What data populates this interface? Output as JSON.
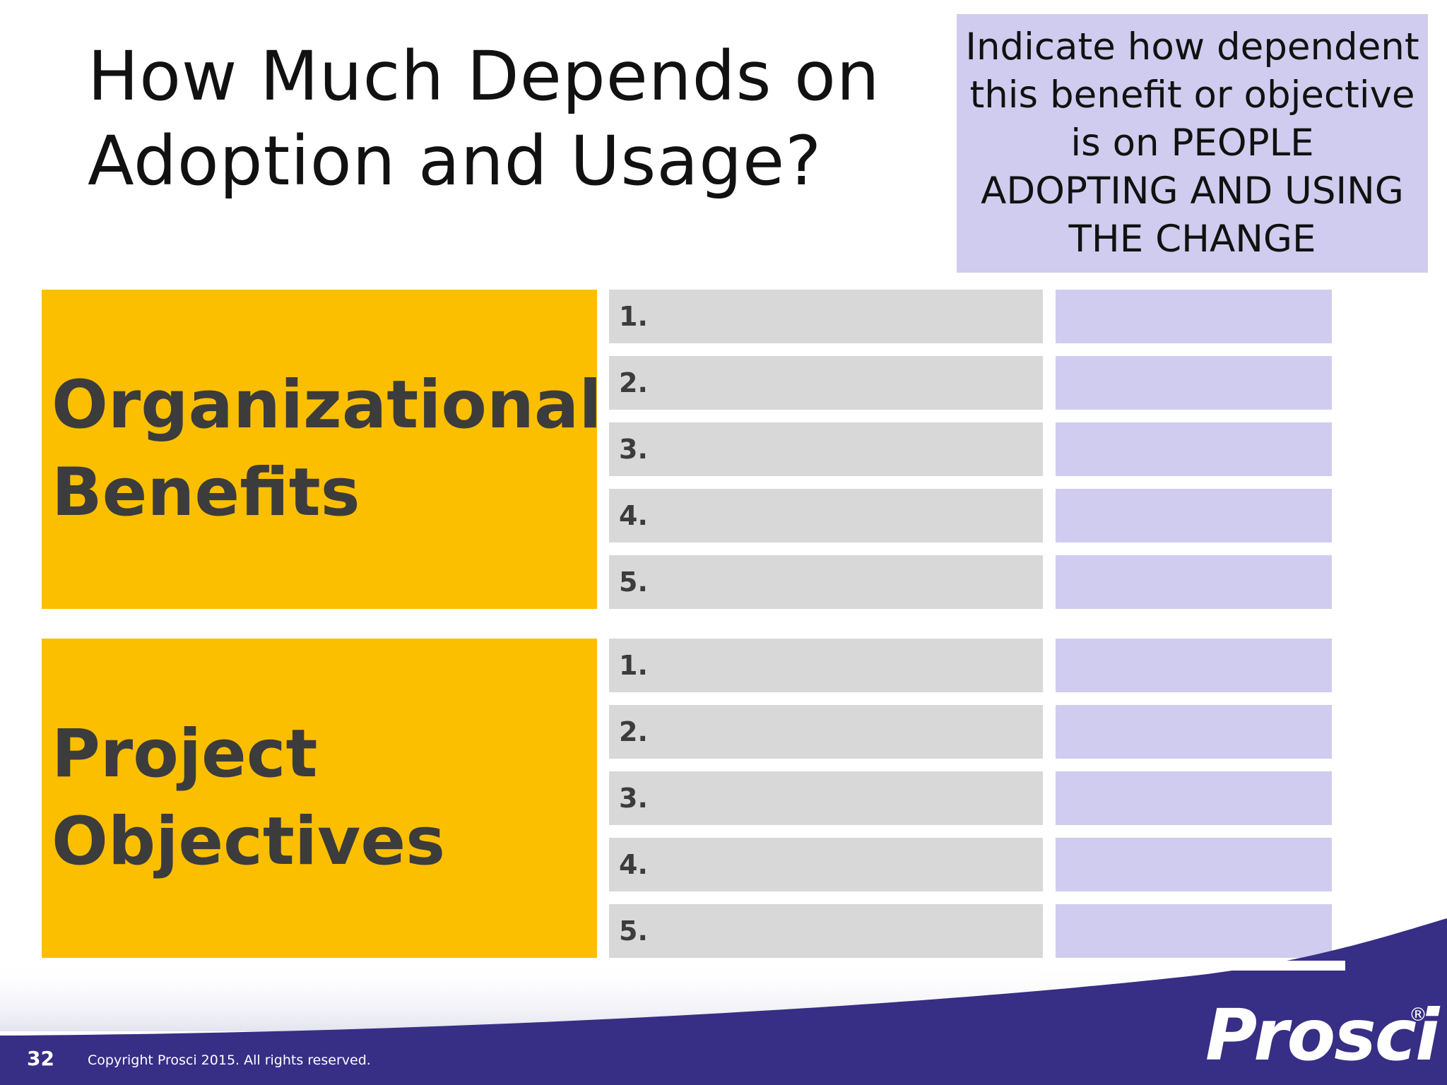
{
  "title": {
    "line1": "How Much Depends on",
    "line2": "Adoption and Usage?"
  },
  "note": {
    "lines": [
      "Indicate how dependent",
      "this benefit or objective",
      "is on PEOPLE",
      "ADOPTING AND USING",
      "THE CHANGE"
    ]
  },
  "sections": [
    {
      "label_lines": [
        "Organizational",
        "Benefits"
      ],
      "items": [
        "1.",
        "2.",
        "3.",
        "4.",
        "5."
      ]
    },
    {
      "label_lines": [
        "Project",
        "Objectives"
      ],
      "items": [
        "1.",
        "2.",
        "3.",
        "4.",
        "5."
      ]
    }
  ],
  "footer": {
    "slide_number": "32",
    "copyright": "Copyright Prosci 2015. All rights reserved.",
    "logo": "Prosci",
    "registered_mark": "®"
  },
  "colors": {
    "category_fill": "#fcbf00",
    "rating_fill": "#d0ccef",
    "item_fill": "#d9d8d9",
    "footer_band": "#372e85"
  }
}
